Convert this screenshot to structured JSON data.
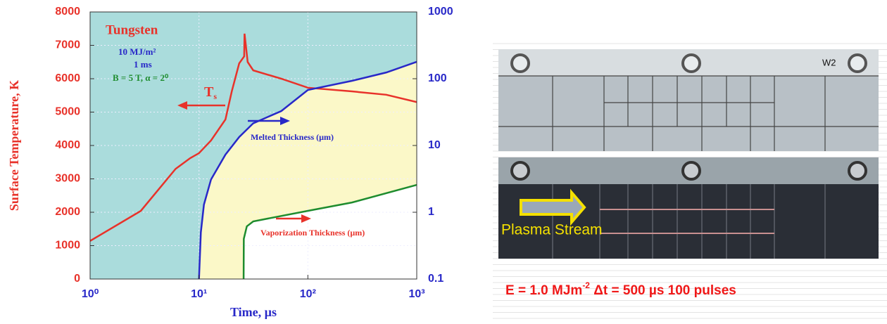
{
  "chart_data": {
    "type": "line",
    "xlabel": "Time, µs",
    "ylabel": "Surface Temperature, K",
    "xscale": "log",
    "y2scale": "log",
    "grid": true,
    "xlim": [
      1,
      1000
    ],
    "xticks": [
      {
        "value": 1,
        "label": "10⁰"
      },
      {
        "value": 10,
        "label": "10¹"
      },
      {
        "value": 100,
        "label": "10²"
      },
      {
        "value": 1000,
        "label": "10³"
      }
    ],
    "ylim": [
      0,
      8000
    ],
    "yticks": [
      0,
      1000,
      2000,
      3000,
      4000,
      5000,
      6000,
      7000,
      8000
    ],
    "y2lim": [
      0.1,
      1000
    ],
    "y2ticks": [
      0.1,
      1,
      10,
      100,
      1000
    ],
    "series": [
      {
        "color": "#e8322a",
        "axis": "y",
        "x": [
          1,
          2.92,
          6.1,
          8.3,
          10,
          12.9,
          17.5,
          20,
          23.4,
          26,
          26.2,
          28,
          31.5,
          57,
          100,
          254,
          525,
          1000
        ],
        "values": [
          1140,
          2040,
          3300,
          3620,
          3770,
          4150,
          4780,
          5620,
          6460,
          6670,
          7350,
          6500,
          6250,
          6000,
          5730,
          5620,
          5520,
          5300
        ]
      },
      {
        "name": "Melted Thickness (µm)",
        "color": "#2828c8",
        "axis": "y2",
        "x": [
          10,
          10.4,
          11.1,
          12.9,
          17.5,
          23.4,
          31.5,
          57,
          100,
          254,
          525,
          1000
        ],
        "values": [
          0.1,
          0.5,
          1.3,
          3.1,
          7.3,
          13.4,
          21.5,
          32.8,
          67.8,
          93,
          124,
          179
        ]
      },
      {
        "name": "Vaporization Thickness (µm)",
        "color": "#1e8c2e",
        "axis": "y2",
        "x": [
          25.7,
          25.8,
          27.5,
          31.5,
          100,
          254,
          1000
        ],
        "values": [
          0.1,
          0.4,
          0.615,
          0.73,
          1.05,
          1.4,
          2.57
        ]
      }
    ],
    "annotations": {
      "material": "Tungsten",
      "energy": "10 MJ/m²",
      "duration": "1 ms",
      "field": "B = 5 T, α = 2⁰",
      "ts_main": "T",
      "ts_sub": "s"
    }
  },
  "photo": {
    "sample": "W2",
    "arrow_label": "Plasma Stream",
    "caption": {
      "main": "E = 1.0 MJm",
      "sup": "-2",
      "rest": " Δt = 500 µs 100 pulses"
    }
  }
}
